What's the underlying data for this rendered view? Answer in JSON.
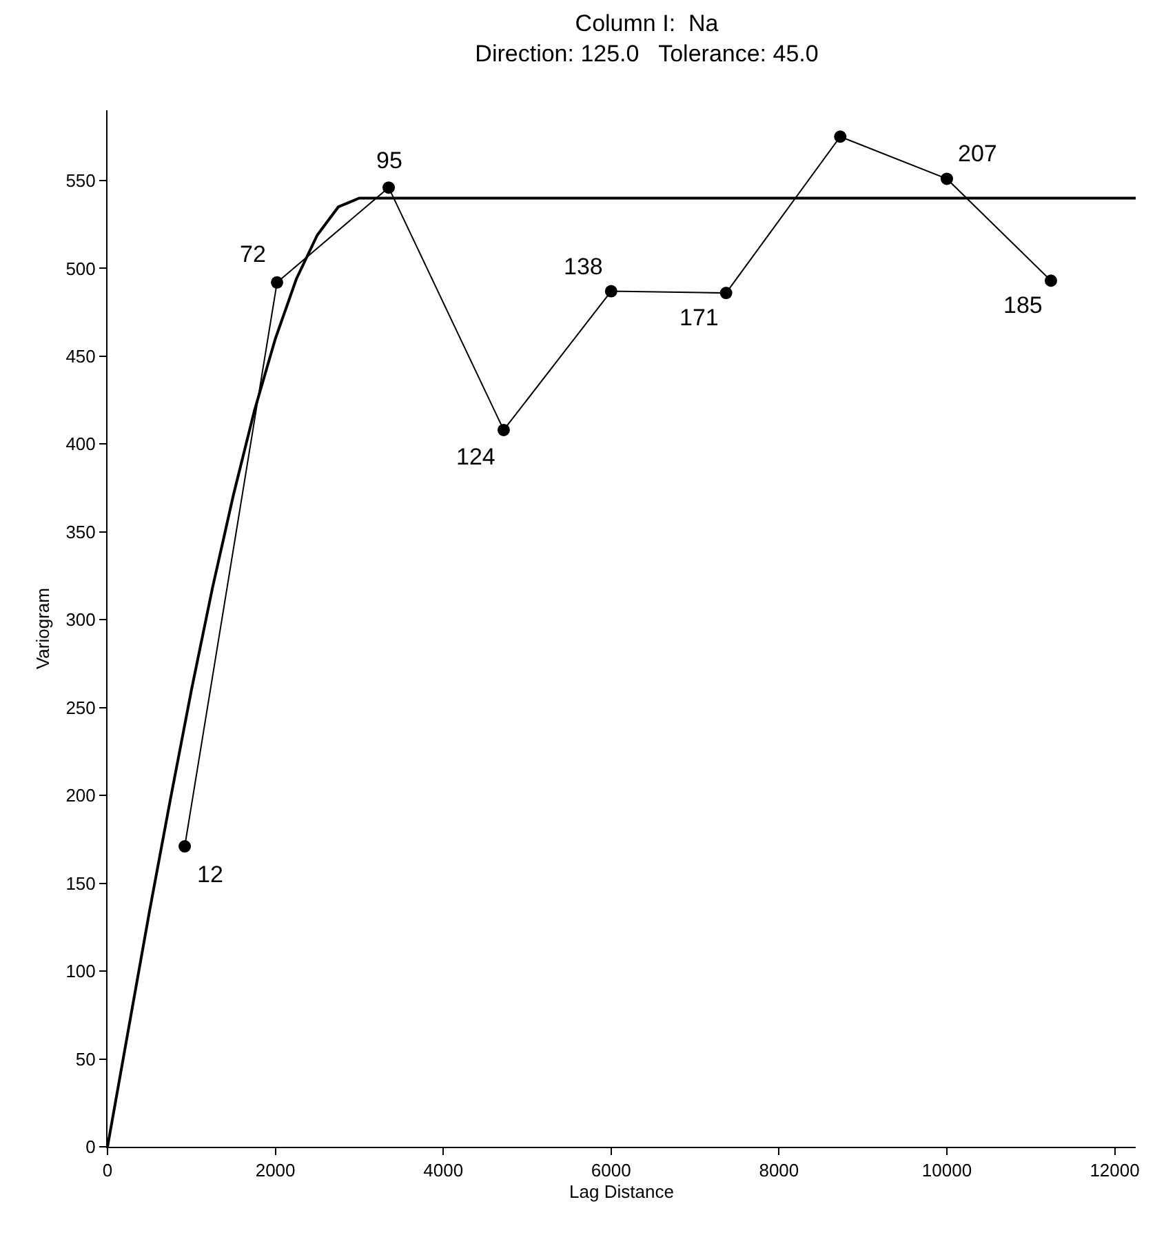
{
  "chart_data": {
    "type": "line",
    "title": "Column I:  Na",
    "subtitle": "Direction: 125.0   Tolerance: 45.0",
    "xlabel": "Lag Distance",
    "ylabel": "Variogram",
    "xlim": [
      0,
      12250
    ],
    "xticks": [
      0,
      2000,
      4000,
      6000,
      8000,
      10000,
      12000
    ],
    "ylim": [
      0,
      590
    ],
    "yticks": [
      0,
      50,
      100,
      150,
      200,
      250,
      300,
      350,
      400,
      450,
      500,
      550
    ],
    "series": [
      {
        "color": "#000000",
        "marker": "circle",
        "x": [
          920,
          2020,
          3350,
          4720,
          6000,
          7370,
          8730,
          10000,
          11240
        ],
        "values": [
          171,
          492,
          546,
          408,
          487,
          486,
          575,
          551,
          493
        ]
      },
      {
        "color": "#000000",
        "marker": "none",
        "x": [
          0,
          250,
          500,
          750,
          1000,
          1250,
          1500,
          1750,
          2000,
          2250,
          2500,
          2750,
          3000,
          12250
        ],
        "values": [
          0,
          67,
          134,
          198,
          260,
          318,
          371,
          419,
          460,
          494,
          519,
          535,
          540,
          540
        ]
      }
    ],
    "annotations": [
      {
        "text": "12",
        "x": 920,
        "y": 171
      },
      {
        "text": "72",
        "x": 2020,
        "y": 492
      },
      {
        "text": "95",
        "x": 3350,
        "y": 546
      },
      {
        "text": "124",
        "x": 4720,
        "y": 408
      },
      {
        "text": "138",
        "x": 6000,
        "y": 487
      },
      {
        "text": "171",
        "x": 7370,
        "y": 486
      },
      {
        "text": "207",
        "x": 10000,
        "y": 551
      },
      {
        "text": "185",
        "x": 11240,
        "y": 493
      }
    ]
  }
}
